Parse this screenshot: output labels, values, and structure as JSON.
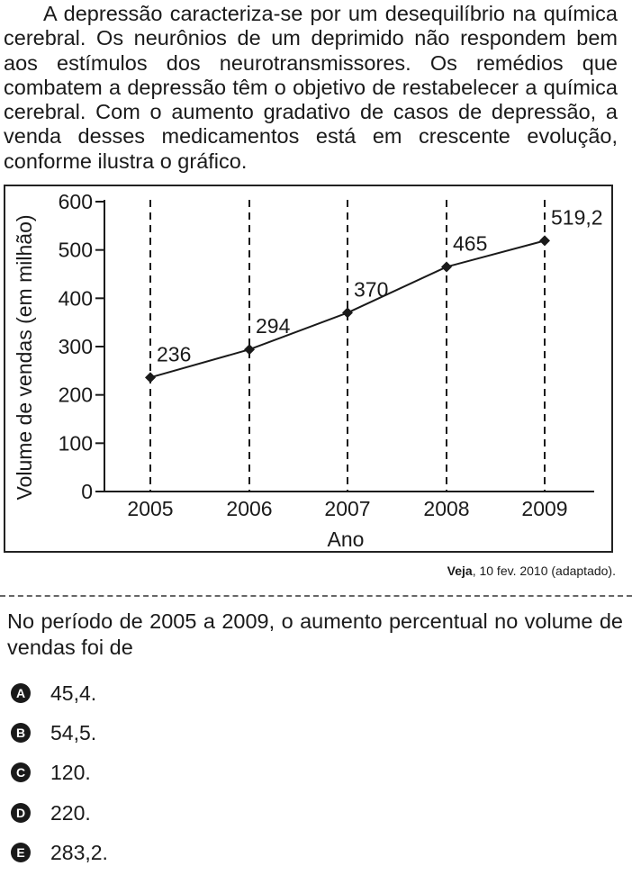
{
  "intro_text": "A depressão caracteriza-se por um desequilíbrio na química cerebral. Os neurônios de um deprimido não respondem bem aos estímulos dos neurotransmissores. Os remédios que combatem a depressão têm o objetivo de restabelecer a química cerebral. Com o aumento gradativo de casos de depressão, a venda desses medicamentos está em crescente evolução, conforme ilustra o gráfico.",
  "chart_data": {
    "type": "line",
    "x": [
      "2005",
      "2006",
      "2007",
      "2008",
      "2009"
    ],
    "values": [
      236,
      294,
      370,
      465,
      519.2
    ],
    "data_labels": [
      "236",
      "294",
      "370",
      "465",
      "519,2"
    ],
    "xlabel": "Ano",
    "ylabel": "Volume de vendas (em milhão)",
    "ylim": [
      0,
      600
    ],
    "yticks": [
      "0",
      "100",
      "200",
      "300",
      "400",
      "500",
      "600"
    ],
    "grid": "dashed vertical lines at each year",
    "color": "#1a1a1a"
  },
  "source": {
    "title": "Veja",
    "rest": ", 10 fev. 2010 (adaptado)."
  },
  "question": "No período de 2005 a 2009, o aumento percentual no volume de vendas foi de",
  "options": [
    {
      "letter": "A",
      "text": "45,4."
    },
    {
      "letter": "B",
      "text": "54,5."
    },
    {
      "letter": "C",
      "text": "120."
    },
    {
      "letter": "D",
      "text": "220."
    },
    {
      "letter": "E",
      "text": "283,2."
    }
  ]
}
